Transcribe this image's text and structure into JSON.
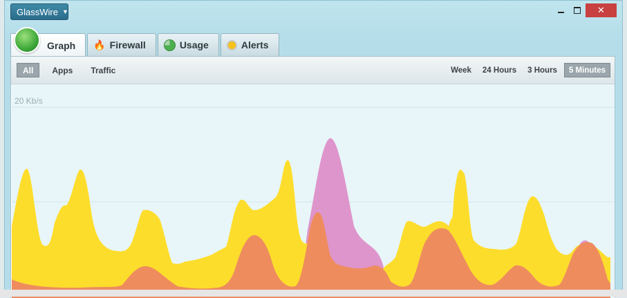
{
  "app_menu": {
    "label": "GlassWire"
  },
  "window_controls": {
    "minimize": "",
    "maximize": "",
    "close": "✕"
  },
  "tabs": [
    {
      "label": "Graph",
      "icon": "graph-orb-icon",
      "active": true
    },
    {
      "label": "Firewall",
      "icon": "flame-icon"
    },
    {
      "label": "Usage",
      "icon": "usage-pie-icon"
    },
    {
      "label": "Alerts",
      "icon": "alert-bulb-icon"
    }
  ],
  "filters": [
    {
      "label": "All",
      "selected": true
    },
    {
      "label": "Apps"
    },
    {
      "label": "Traffic"
    }
  ],
  "ranges": [
    {
      "label": "Week"
    },
    {
      "label": "24 Hours"
    },
    {
      "label": "3 Hours"
    },
    {
      "label": "5 Minutes",
      "selected": true
    }
  ],
  "chart": {
    "ylabel_top": "20 Kb/s",
    "colors": {
      "incoming": "#fddd2c",
      "outgoing": "#ee8c5e",
      "overlap": "#dd8fc8"
    }
  }
}
